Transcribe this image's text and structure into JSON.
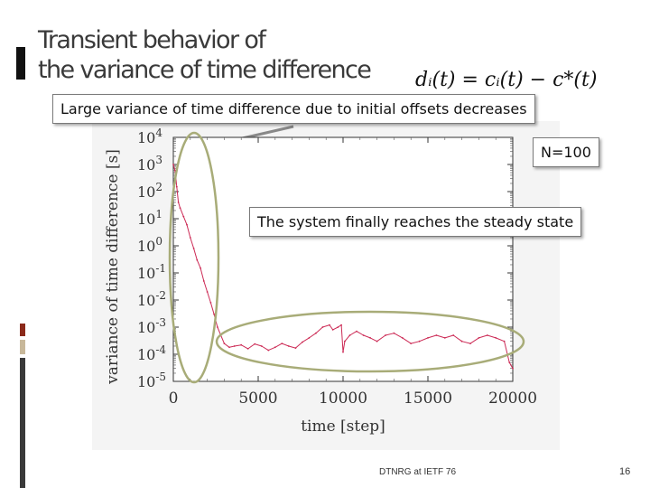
{
  "slide": {
    "title": "Transient behavior of\nthe variance of time difference",
    "formula": "dᵢ(t) = cᵢ(t) − c*(t)",
    "footer": "DTNRG at IETF 76",
    "page_number": "16",
    "colors": {
      "accent": "#111111",
      "series": "#cc2a55",
      "stripe_top": "#8b2a1a",
      "stripe_mid": "#c8b89a",
      "stripe_bottom": "#3a3a3a"
    }
  },
  "callouts": {
    "initial_offsets": "Large variance of time difference due to initial offsets decreases",
    "nodes": "N=100",
    "steady_state": "The system finally reaches the steady state"
  },
  "chart_data": {
    "type": "line",
    "xlabel": "time [step]",
    "ylabel": "variance of time difference [s]",
    "xlim": [
      0,
      20000
    ],
    "ylim": [
      1e-05,
      10000
    ],
    "log_y": true,
    "grid": false,
    "xticks": [
      "0",
      "5000",
      "10000",
      "15000",
      "20000"
    ],
    "yticks": [
      {
        "base": "10",
        "exp": "4",
        "value": 10000
      },
      {
        "base": "10",
        "exp": "3",
        "value": 1000
      },
      {
        "base": "10",
        "exp": "2",
        "value": 100
      },
      {
        "base": "10",
        "exp": "1",
        "value": 10
      },
      {
        "base": "10",
        "exp": "0",
        "value": 1
      },
      {
        "base": "10",
        "exp": "-1",
        "value": 0.1
      },
      {
        "base": "10",
        "exp": "-2",
        "value": 0.01
      },
      {
        "base": "10",
        "exp": "-3",
        "value": 0.001
      },
      {
        "base": "10",
        "exp": "-4",
        "value": 0.0001
      },
      {
        "base": "10",
        "exp": "-5",
        "value": 1e-05
      }
    ],
    "series": [
      {
        "color": "#cc2a55",
        "x": [
          0,
          100,
          200,
          300,
          400,
          600,
          800,
          1000,
          1200,
          1400,
          1600,
          1800,
          2000,
          2200,
          2400,
          2600,
          2800,
          3000,
          3300,
          3600,
          4000,
          4400,
          4800,
          5200,
          5600,
          6000,
          6400,
          6800,
          7200,
          7600,
          8000,
          8400,
          8800,
          9200,
          9400,
          9700,
          9900,
          10000,
          10100,
          10400,
          10800,
          11200,
          11600,
          12000,
          12500,
          13000,
          13500,
          14000,
          14500,
          15000,
          15500,
          16000,
          16500,
          17000,
          17500,
          18000,
          18500,
          19000,
          19500,
          19800,
          20000
        ],
        "y": [
          1000,
          600,
          150,
          40,
          25,
          12,
          6,
          2,
          0.8,
          0.3,
          0.15,
          0.05,
          0.02,
          0.008,
          0.003,
          0.001,
          0.0005,
          0.00025,
          0.00018,
          0.0002,
          0.00022,
          0.00016,
          0.00024,
          0.0002,
          0.00014,
          0.00018,
          0.00025,
          0.0002,
          0.00017,
          0.00028,
          0.0004,
          0.0006,
          0.001,
          0.0012,
          0.0008,
          0.001,
          0.0012,
          0.00012,
          0.0003,
          0.0005,
          0.0007,
          0.0005,
          0.0004,
          0.0003,
          0.0005,
          0.0006,
          0.0004,
          0.00025,
          0.0003,
          0.0004,
          0.0005,
          0.0004,
          0.0005,
          0.0003,
          0.00025,
          0.0004,
          0.0005,
          0.0004,
          0.0003,
          5e-05,
          3e-05
        ]
      }
    ]
  }
}
